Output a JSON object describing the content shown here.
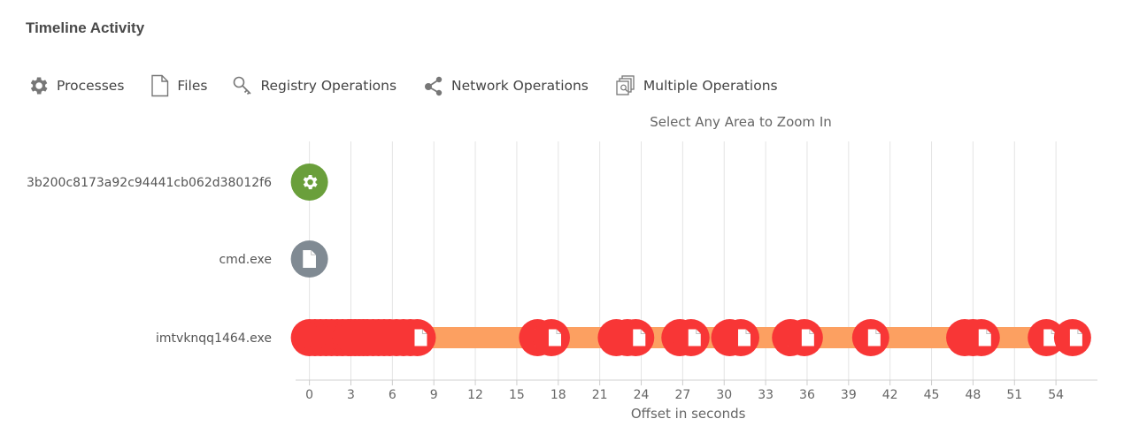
{
  "page": {
    "title": "Timeline Activity"
  },
  "legend": [
    {
      "label": "Processes",
      "icon": "gear-icon"
    },
    {
      "label": "Files",
      "icon": "file-icon"
    },
    {
      "label": "Registry Operations",
      "icon": "key-icon"
    },
    {
      "label": "Network Operations",
      "icon": "network-share-icon"
    },
    {
      "label": "Multiple Operations",
      "icon": "multiple-documents-icon"
    }
  ],
  "colors": {
    "process": "#6a9f3b",
    "file": "#808a93",
    "multiple": "#f83636",
    "bar": "#fca061",
    "grid": "#e4e4e4"
  },
  "chart_data": {
    "type": "scatter",
    "subtitle": "Select Any Area to Zoom In",
    "xlabel": "Offset in seconds",
    "xlim": [
      -1,
      57
    ],
    "xticks": [
      0,
      3,
      6,
      9,
      12,
      15,
      18,
      21,
      24,
      27,
      30,
      33,
      36,
      39,
      42,
      45,
      48,
      51,
      54
    ],
    "grid": true,
    "rows": [
      {
        "name": "3b200c8173a92c94441cb062d38012f6",
        "type": "process",
        "events": [
          0
        ]
      },
      {
        "name": "cmd.exe",
        "type": "file",
        "events": [
          0
        ]
      },
      {
        "name": "imtvknqq1464.exe",
        "type": "multiple",
        "bar": [
          0,
          55.2
        ],
        "events": [
          0,
          0.4,
          0.8,
          1.2,
          1.6,
          2.0,
          2.4,
          2.8,
          3.0,
          3.3,
          3.6,
          3.9,
          4.2,
          4.6,
          5.0,
          5.4,
          5.8,
          6.3,
          6.8,
          7.3,
          7.8,
          16.5,
          17.5,
          22.2,
          23.0,
          23.6,
          26.8,
          27.6,
          30.4,
          31.2,
          34.8,
          35.8,
          40.6,
          47.4,
          48.0,
          48.6,
          53.3,
          55.2
        ]
      }
    ]
  }
}
